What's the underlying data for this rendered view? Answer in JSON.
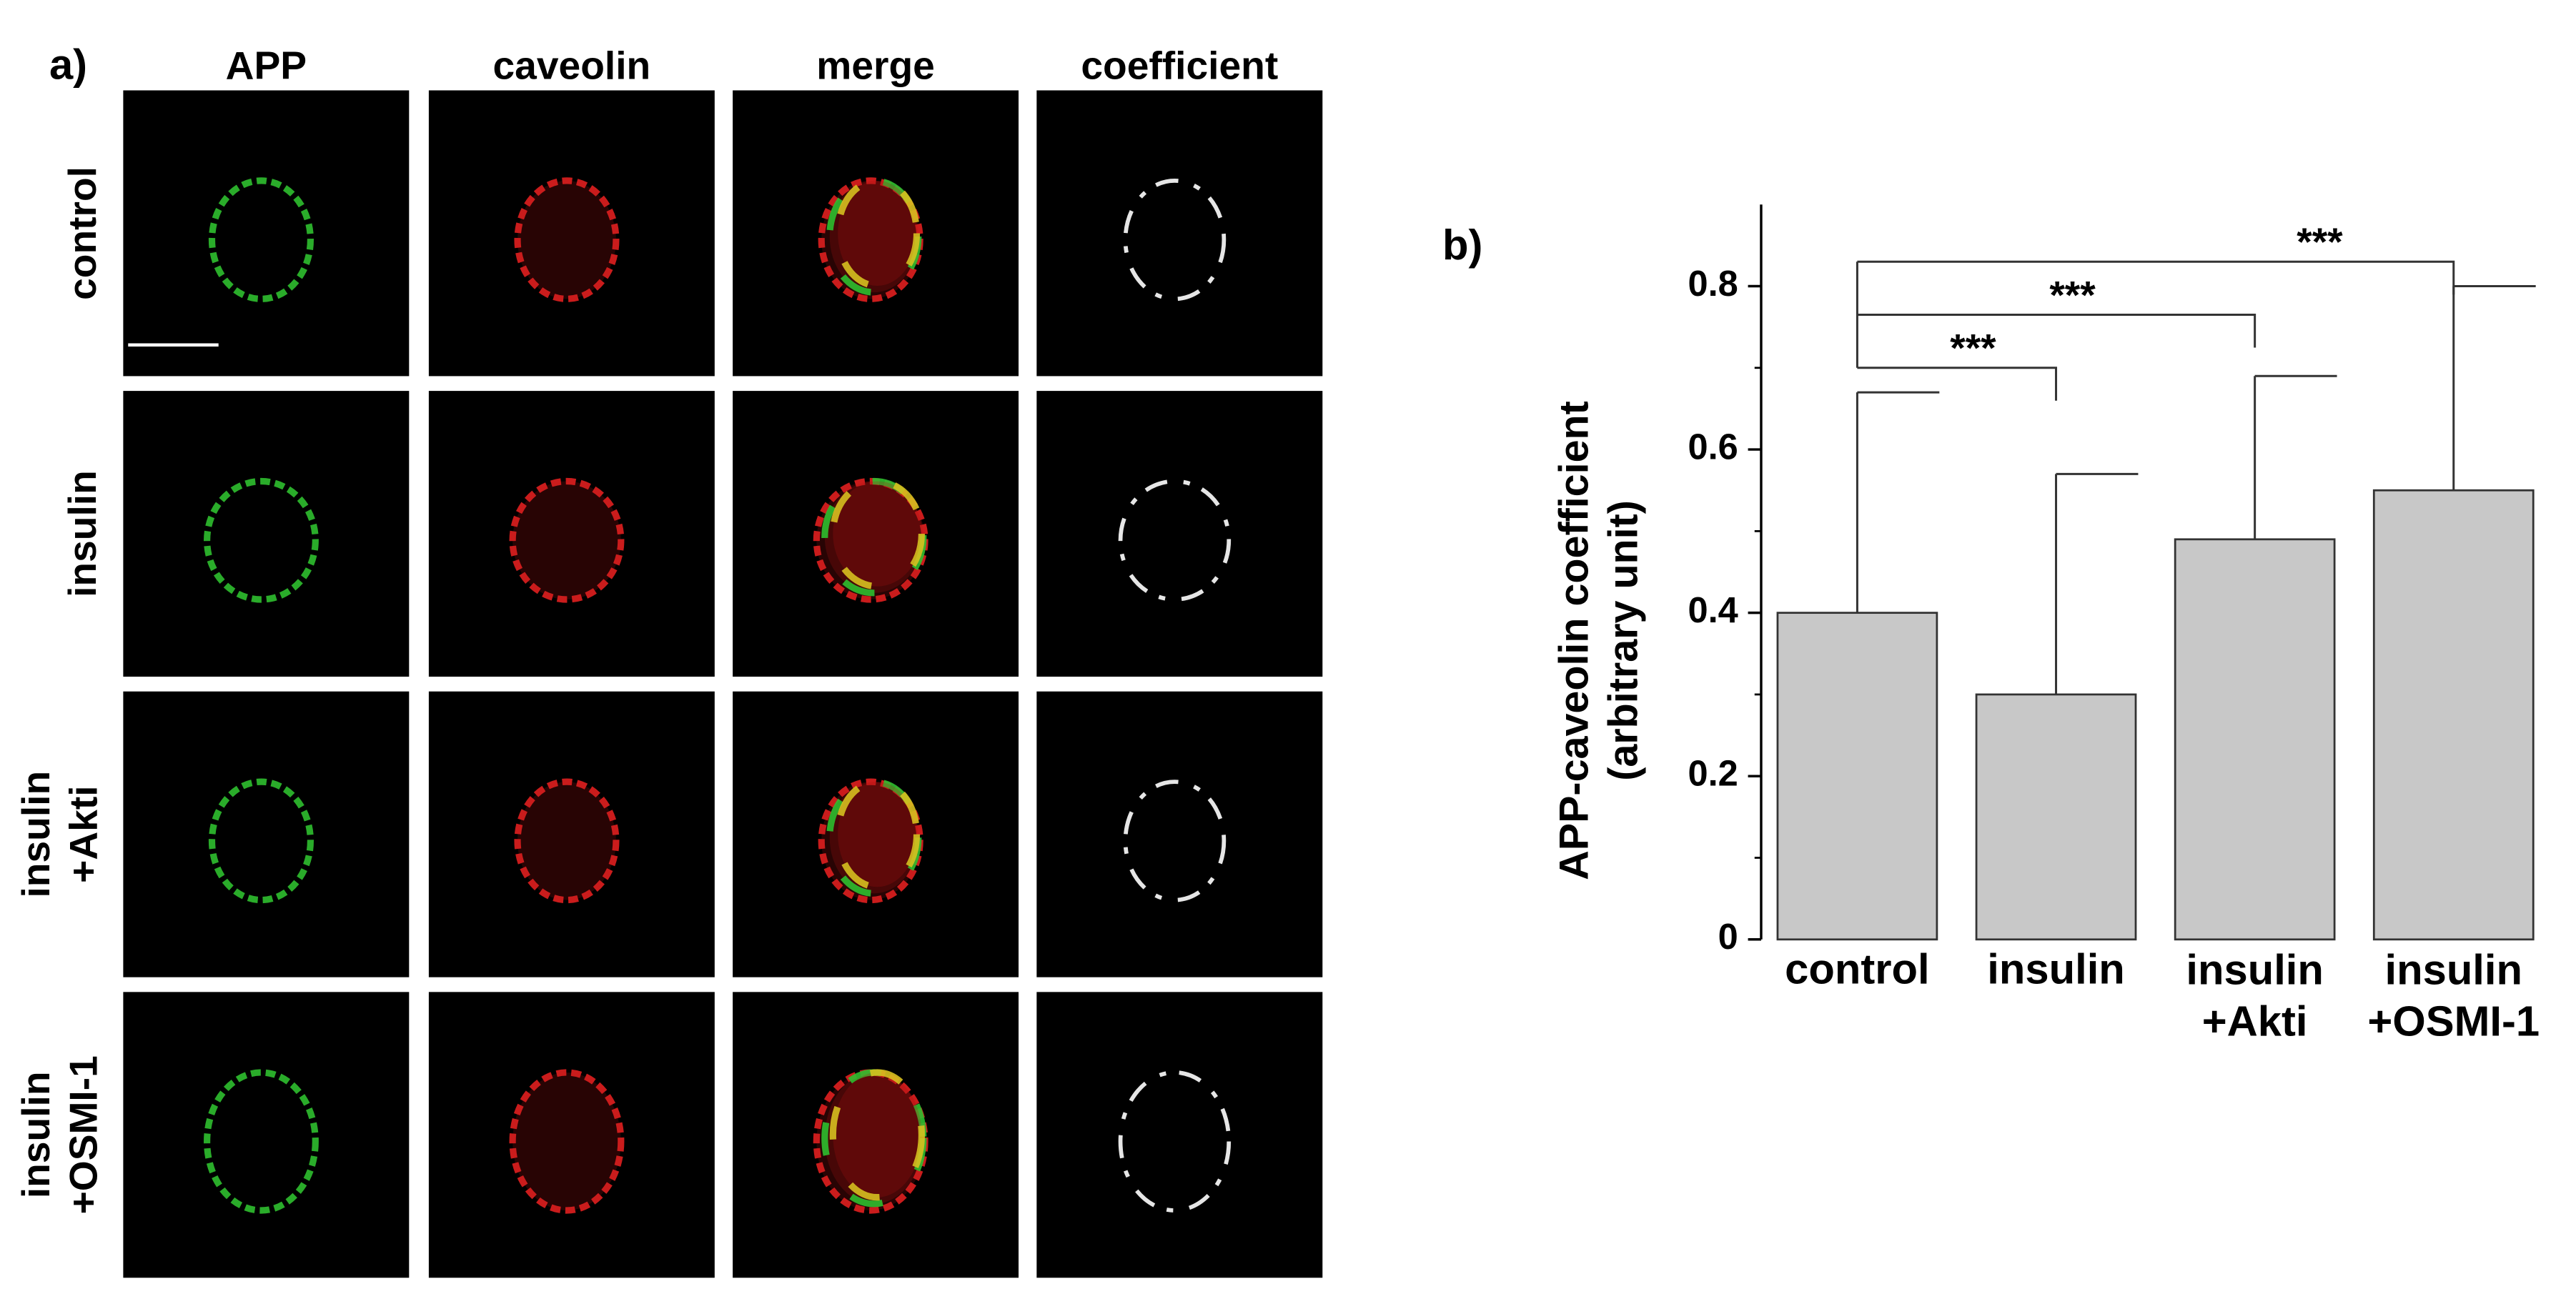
{
  "panel_a": {
    "label": "a)",
    "columns": [
      "APP",
      "caveolin",
      "merge",
      "coefficient"
    ],
    "rows": [
      "control",
      "insulin",
      "insulin\n+Akti",
      "insulin\n+OSMI-1"
    ]
  },
  "chart_data": {
    "type": "bar",
    "label": "b)",
    "ylabel": "APP-caveolin coefficient\n(arbitrary unit)",
    "categories": [
      "control",
      "insulin",
      "insulin\n+Akti",
      "insulin\n+OSMI-1"
    ],
    "values": [
      0.4,
      0.3,
      0.49,
      0.55
    ],
    "errors": [
      0.27,
      0.27,
      0.2,
      0.25
    ],
    "color": "#c8c8c8",
    "ylim": [
      0,
      0.9
    ],
    "yticks": [
      0,
      0.2,
      0.4,
      0.6,
      0.8
    ],
    "minor_yticks": [
      0.1,
      0.3,
      0.5,
      0.7
    ],
    "significance": [
      {
        "groups": [
          0,
          1
        ],
        "label": "***"
      },
      {
        "groups": [
          0,
          2
        ],
        "label": "***"
      },
      {
        "groups": [
          0,
          3
        ],
        "label": "***"
      }
    ]
  }
}
